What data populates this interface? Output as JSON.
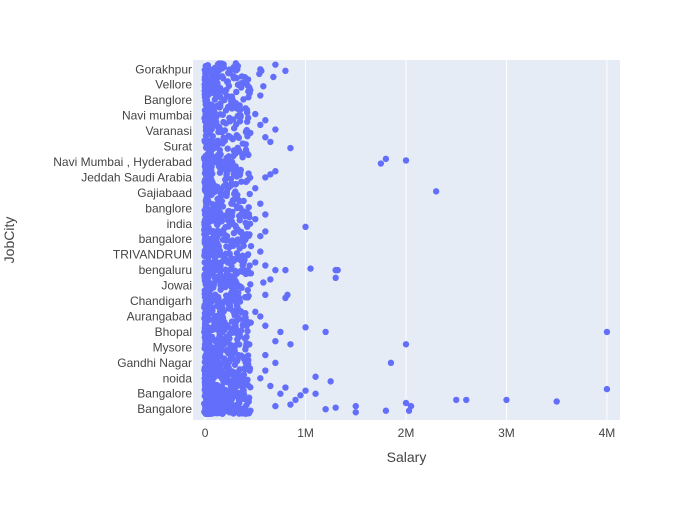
{
  "colors": {
    "plot_background": "#e5ecf6",
    "gridline": "#ffffff",
    "marker": "#636efa",
    "text": "#444444"
  },
  "chart_data": {
    "type": "scatter",
    "xlabel": "Salary",
    "ylabel": "JobCity",
    "xlim": [
      -120000,
      4130000
    ],
    "x_ticks": [
      {
        "value": 0,
        "label": "0"
      },
      {
        "value": 1000000,
        "label": "1M"
      },
      {
        "value": 2000000,
        "label": "2M"
      },
      {
        "value": 3000000,
        "label": "3M"
      },
      {
        "value": 4000000,
        "label": "4M"
      }
    ],
    "y_ticks": [
      {
        "index": 0,
        "label": "Bangalore"
      },
      {
        "index": 1,
        "label": "Bangalore "
      },
      {
        "index": 2,
        "label": "noida"
      },
      {
        "index": 3,
        "label": "Gandhi Nagar"
      },
      {
        "index": 4,
        "label": "Mysore "
      },
      {
        "index": 5,
        "label": "Bhopal"
      },
      {
        "index": 6,
        "label": "Aurangabad"
      },
      {
        "index": 7,
        "label": "Chandigarh"
      },
      {
        "index": 8,
        "label": "Jowai"
      },
      {
        "index": 9,
        "label": "bengaluru"
      },
      {
        "index": 10,
        "label": "TRIVANDRUM"
      },
      {
        "index": 11,
        "label": "bangalore "
      },
      {
        "index": 12,
        "label": "india"
      },
      {
        "index": 13,
        "label": "banglore"
      },
      {
        "index": 14,
        "label": "Gajiabaad"
      },
      {
        "index": 15,
        "label": "Jeddah Saudi Arabia"
      },
      {
        "index": 16,
        "label": "Navi Mumbai , Hyderabad"
      },
      {
        "index": 17,
        "label": "Surat"
      },
      {
        "index": 18,
        "label": "Varanasi"
      },
      {
        "index": 19,
        "label": "Navi mumbai"
      },
      {
        "index": 20,
        "label": "Banglore "
      },
      {
        "index": 21,
        "label": "Vellore"
      },
      {
        "index": 22,
        "label": "Gorakhpur"
      }
    ],
    "ylim_index": [
      -0.7,
      22.6
    ],
    "grid": true,
    "legend": "none",
    "dense_region": {
      "x_min": 0,
      "x_max": 450000,
      "y_index_min": -0.3,
      "y_index_max": 22.4,
      "count": 1400
    },
    "points": [
      {
        "x": 1500000,
        "y": -0.2
      },
      {
        "x": 1800000,
        "y": -0.1
      },
      {
        "x": 1500000,
        "y": 0.2
      },
      {
        "x": 2000000,
        "y": 0.4
      },
      {
        "x": 2050000,
        "y": 0.2
      },
      {
        "x": 2030000,
        "y": -0.1
      },
      {
        "x": 2500000,
        "y": 0.6
      },
      {
        "x": 2600000,
        "y": 0.6
      },
      {
        "x": 3000000,
        "y": 0.6
      },
      {
        "x": 3500000,
        "y": 0.5
      },
      {
        "x": 4000000,
        "y": 1.3
      },
      {
        "x": 900000,
        "y": 0.6
      },
      {
        "x": 950000,
        "y": 0.9
      },
      {
        "x": 1100000,
        "y": 1.0
      },
      {
        "x": 1000000,
        "y": 1.2
      },
      {
        "x": 800000,
        "y": 1.4
      },
      {
        "x": 850000,
        "y": 0.3
      },
      {
        "x": 1250000,
        "y": 1.8
      },
      {
        "x": 1100000,
        "y": 2.1
      },
      {
        "x": 1200000,
        "y": 0.0
      },
      {
        "x": 1300000,
        "y": 0.1
      },
      {
        "x": 700000,
        "y": 0.2
      },
      {
        "x": 750000,
        "y": 1.0
      },
      {
        "x": 650000,
        "y": 1.5
      },
      {
        "x": 550000,
        "y": 2.0
      },
      {
        "x": 600000,
        "y": 2.5
      },
      {
        "x": 1850000,
        "y": 3.0
      },
      {
        "x": 700000,
        "y": 3.0
      },
      {
        "x": 600000,
        "y": 3.5
      },
      {
        "x": 2000000,
        "y": 4.2
      },
      {
        "x": 850000,
        "y": 4.2
      },
      {
        "x": 700000,
        "y": 4.4
      },
      {
        "x": 4000000,
        "y": 5.0
      },
      {
        "x": 1200000,
        "y": 5.0
      },
      {
        "x": 1000000,
        "y": 5.3
      },
      {
        "x": 750000,
        "y": 5.0
      },
      {
        "x": 600000,
        "y": 5.4
      },
      {
        "x": 500000,
        "y": 6.3
      },
      {
        "x": 550000,
        "y": 6.0
      },
      {
        "x": 800000,
        "y": 7.2
      },
      {
        "x": 820000,
        "y": 7.4
      },
      {
        "x": 600000,
        "y": 7.4
      },
      {
        "x": 1300000,
        "y": 8.5
      },
      {
        "x": 650000,
        "y": 8.4
      },
      {
        "x": 580000,
        "y": 8.2
      },
      {
        "x": 1050000,
        "y": 9.1
      },
      {
        "x": 1300000,
        "y": 9.0
      },
      {
        "x": 1320000,
        "y": 9.0
      },
      {
        "x": 800000,
        "y": 9.0
      },
      {
        "x": 700000,
        "y": 9.0
      },
      {
        "x": 600000,
        "y": 9.3
      },
      {
        "x": 500000,
        "y": 9.5
      },
      {
        "x": 550000,
        "y": 10.2
      },
      {
        "x": 1000000,
        "y": 11.8
      },
      {
        "x": 600000,
        "y": 11.5
      },
      {
        "x": 550000,
        "y": 11.2
      },
      {
        "x": 500000,
        "y": 12.3
      },
      {
        "x": 600000,
        "y": 12.6
      },
      {
        "x": 550000,
        "y": 13.3
      },
      {
        "x": 2300000,
        "y": 14.1
      },
      {
        "x": 500000,
        "y": 14.3
      },
      {
        "x": 650000,
        "y": 15.2
      },
      {
        "x": 700000,
        "y": 15.4
      },
      {
        "x": 600000,
        "y": 15.0
      },
      {
        "x": 1750000,
        "y": 15.9
      },
      {
        "x": 1800000,
        "y": 16.2
      },
      {
        "x": 2000000,
        "y": 16.1
      },
      {
        "x": 850000,
        "y": 16.9
      },
      {
        "x": 650000,
        "y": 17.3
      },
      {
        "x": 600000,
        "y": 17.6
      },
      {
        "x": 700000,
        "y": 18.1
      },
      {
        "x": 550000,
        "y": 18.4
      },
      {
        "x": 600000,
        "y": 18.7
      },
      {
        "x": 500000,
        "y": 19.1
      },
      {
        "x": 550000,
        "y": 20.3
      },
      {
        "x": 580000,
        "y": 20.9
      },
      {
        "x": 800000,
        "y": 21.9
      },
      {
        "x": 550000,
        "y": 22.0
      },
      {
        "x": 560000,
        "y": 21.9
      },
      {
        "x": 700000,
        "y": 22.3
      },
      {
        "x": 680000,
        "y": 21.5
      },
      {
        "x": 540000,
        "y": 21.7
      }
    ]
  }
}
